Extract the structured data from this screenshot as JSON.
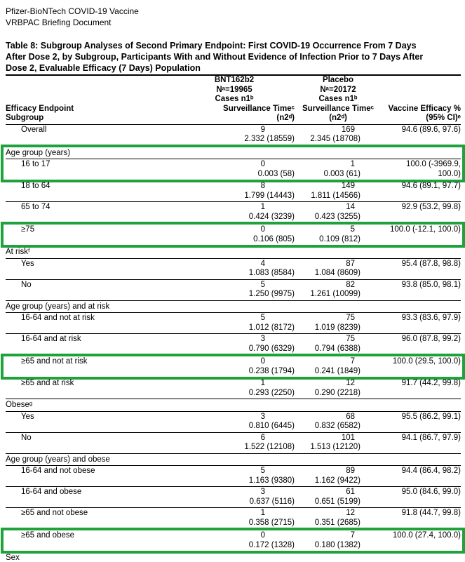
{
  "doc_header": {
    "line1": "Pfizer-BioNTech COVID-19 Vaccine",
    "line2": "VRBPAC Briefing Document"
  },
  "table_title": "Table 8: Subgroup Analyses of Second Primary Endpoint: First COVID-19 Occurrence From 7 Days After Dose 2, by Subgroup, Participants With and Without Evidence of Infection Prior to 7 Days After Dose 2, Evaluable Efficacy (7 Days) Population",
  "highlight_color": "#1fa23b",
  "header": {
    "stub": [
      "Efficacy Endpoint",
      "Subgroup"
    ],
    "bnt": [
      "BNT162b2",
      "Nᵃ=19965",
      "Cases n1ᵇ",
      "Surveillance Timeᶜ",
      "(n2ᵈ)"
    ],
    "placebo": [
      "Placebo",
      "Nᵃ=20172",
      "Cases n1ᵇ",
      "Surveillance Timeᶜ",
      "(n2ᵈ)"
    ],
    "ve": [
      "Vaccine Efficacy %",
      "(95% CI)ᵉ"
    ]
  },
  "rows": [
    {
      "t": "d",
      "box": 0,
      "label": "Overall",
      "b1": "9",
      "b2": "2.332 (18559)",
      "p1": "169",
      "p2": "2.345 (18708)",
      "v1": "94.6 (89.6, 97.6)",
      "v2": ""
    },
    {
      "t": "s",
      "box": 1,
      "label": "Age group (years)"
    },
    {
      "t": "d",
      "box": 1,
      "label": "16 to 17",
      "b1": "0",
      "b2": "0.003 (58)",
      "p1": "1",
      "p2": "0.003 (61)",
      "v1": "100.0 (-3969.9,",
      "v2": "100.0)"
    },
    {
      "t": "d",
      "box": 0,
      "label": "18 to 64",
      "b1": "8",
      "b2": "1.799 (14443)",
      "p1": "149",
      "p2": "1.811 (14566)",
      "v1": "94.6 (89.1, 97.7)",
      "v2": ""
    },
    {
      "t": "d",
      "box": 0,
      "label": "65 to 74",
      "b1": "1",
      "b2": "0.424 (3239)",
      "p1": "14",
      "p2": "0.423 (3255)",
      "v1": "92.9 (53.2, 99.8)",
      "v2": ""
    },
    {
      "t": "d",
      "box": 2,
      "label": "≥75",
      "b1": "0",
      "b2": "0.106 (805)",
      "p1": "5",
      "p2": "0.109 (812)",
      "v1": "100.0 (-12.1, 100.0)",
      "v2": ""
    },
    {
      "t": "s",
      "box": 0,
      "label": "At riskᶠ"
    },
    {
      "t": "d",
      "box": 0,
      "label": "Yes",
      "b1": "4",
      "b2": "1.083 (8584)",
      "p1": "87",
      "p2": "1.084 (8609)",
      "v1": "95.4 (87.8, 98.8)",
      "v2": ""
    },
    {
      "t": "d",
      "box": 0,
      "label": "No",
      "b1": "5",
      "b2": "1.250 (9975)",
      "p1": "82",
      "p2": "1.261 (10099)",
      "v1": "93.8 (85.0, 98.1)",
      "v2": ""
    },
    {
      "t": "s",
      "box": 0,
      "label": "Age group (years) and at risk"
    },
    {
      "t": "d",
      "box": 0,
      "label": "16-64 and not at risk",
      "b1": "5",
      "b2": "1.012 (8172)",
      "p1": "75",
      "p2": "1.019 (8239)",
      "v1": "93.3 (83.6, 97.9)",
      "v2": ""
    },
    {
      "t": "d",
      "box": 0,
      "label": "16-64 and at risk",
      "b1": "3",
      "b2": "0.790 (6329)",
      "p1": "75",
      "p2": "0.794 (6388)",
      "v1": "96.0 (87.8, 99.2)",
      "v2": ""
    },
    {
      "t": "d",
      "box": 3,
      "label": "≥65 and not at risk",
      "b1": "0",
      "b2": "0.238 (1794)",
      "p1": "7",
      "p2": "0.241 (1849)",
      "v1": "100.0 (29.5, 100.0)",
      "v2": ""
    },
    {
      "t": "d",
      "box": 0,
      "label": "≥65 and at risk",
      "b1": "1",
      "b2": "0.293 (2250)",
      "p1": "12",
      "p2": "0.290 (2218)",
      "v1": "91.7 (44.2, 99.8)",
      "v2": ""
    },
    {
      "t": "s",
      "box": 0,
      "label": "Obeseᵍ"
    },
    {
      "t": "d",
      "box": 0,
      "label": "Yes",
      "b1": "3",
      "b2": "0.810 (6445)",
      "p1": "68",
      "p2": "0.832 (6582)",
      "v1": "95.5 (86.2, 99.1)",
      "v2": ""
    },
    {
      "t": "d",
      "box": 0,
      "label": "No",
      "b1": "6",
      "b2": "1.522 (12108)",
      "p1": "101",
      "p2": "1.513 (12120)",
      "v1": "94.1 (86.7, 97.9)",
      "v2": ""
    },
    {
      "t": "s",
      "box": 0,
      "label": "Age group (years) and obese"
    },
    {
      "t": "d",
      "box": 0,
      "label": "16-64 and not obese",
      "b1": "5",
      "b2": "1.163 (9380)",
      "p1": "89",
      "p2": "1.162 (9422)",
      "v1": "94.4 (86.4, 98.2)",
      "v2": ""
    },
    {
      "t": "d",
      "box": 0,
      "label": "16-64 and obese",
      "b1": "3",
      "b2": "0.637 (5116)",
      "p1": "61",
      "p2": "0.651 (5199)",
      "v1": "95.0 (84.6, 99.0)",
      "v2": ""
    },
    {
      "t": "d",
      "box": 0,
      "label": "≥65 and not obese",
      "b1": "1",
      "b2": "0.358 (2715)",
      "p1": "12",
      "p2": "0.351 (2685)",
      "v1": "91.8 (44.7, 99.8)",
      "v2": ""
    },
    {
      "t": "d",
      "box": 4,
      "label": "≥65 and obese",
      "b1": "0",
      "b2": "0.172 (1328)",
      "p1": "7",
      "p2": "0.180 (1382)",
      "v1": "100.0 (27.4, 100.0)",
      "v2": ""
    },
    {
      "t": "s",
      "box": 0,
      "label": "Sex"
    }
  ]
}
